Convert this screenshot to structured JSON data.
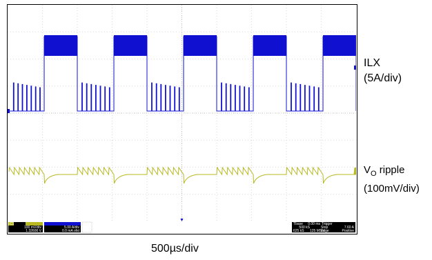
{
  "chart_data": {
    "type": "line",
    "title": "",
    "xlabel": "500µs/div",
    "grid": true,
    "divisions": {
      "x": 10,
      "y": 8
    },
    "series": [
      {
        "name": "ILX",
        "scale": "5A/div",
        "color": "#1010d0",
        "period_div": 2.0,
        "high_start_div": [
          1.05,
          3.05,
          5.05,
          7.05,
          9.05
        ],
        "high_width_div": 0.95,
        "pulse_count_low": 7
      },
      {
        "name": "VO ripple",
        "scale": "100mV/div",
        "color": "#b8b820",
        "period_div": 2.0,
        "sawtooth_teeth": 7
      }
    ]
  },
  "labels": {
    "ilx_line1": "ILX",
    "ilx_line2": "(5A/div)",
    "vo_main": "V",
    "vo_sub": "O",
    "vo_rest": " ripple",
    "vo_line2": "(100mV/div)",
    "time": "500µs/div"
  },
  "statusbar": {
    "c1_tag": "C1",
    "c1_scale": "100 mV/div",
    "c1_offset": "1.32600 V",
    "c2_scale": "5.00 A/div",
    "c2_offset": "0.0 mA ofst",
    "tbase_label": "Tbase",
    "tbase_value": "0.00 ms",
    "trigger_label": "Trigger",
    "samples": "500 kS",
    "rate": "125 MS/s",
    "stop": "Stop",
    "edge": "Edge",
    "trig_level": "7.60 A",
    "positive": "Positive",
    "extra": "625 kS"
  },
  "colors": {
    "ilx": "#1010d0",
    "vo": "#b8b820",
    "grid": "#d9d9d9",
    "status": "#000000"
  }
}
